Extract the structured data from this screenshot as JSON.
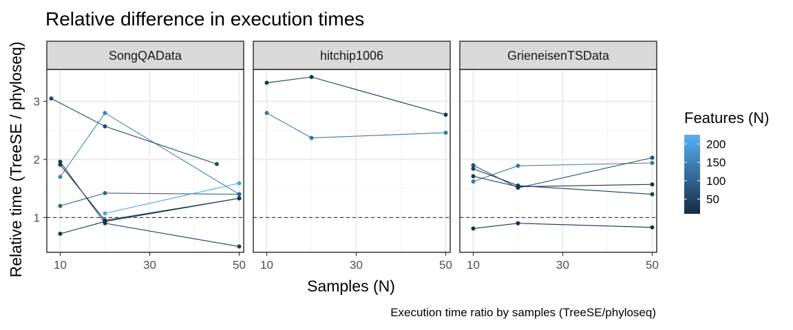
{
  "chart_data": {
    "type": "line",
    "title": "Relative difference in execution times",
    "xlabel": "Samples (N)",
    "ylabel": "Relative time (TreeSE / phyloseq)",
    "caption": "Execution time ratio by samples (TreeSE/phyloseq)",
    "x_ticks": [
      10,
      30,
      50
    ],
    "y_ticks": [
      1,
      2,
      3
    ],
    "xlim": [
      7,
      51
    ],
    "ylim": [
      0.4,
      3.55
    ],
    "reference_line": 1,
    "grid": true,
    "legend": {
      "title": "Features (N)",
      "position": "right",
      "ticks": [
        50,
        100,
        150,
        200
      ],
      "range": [
        10,
        225
      ],
      "color_low": "#132B43",
      "color_high": "#56B1F7"
    },
    "panels": [
      {
        "name": "SongQAData",
        "series": [
          {
            "features": 150,
            "x": [
              10,
              20,
              50
            ],
            "y": [
              1.7,
              2.8,
              1.4
            ]
          },
          {
            "features": 100,
            "x": [
              10,
              20,
              50
            ],
            "y": [
              1.2,
              1.42,
              1.4
            ]
          },
          {
            "features": 60,
            "x": [
              8,
              20,
              45
            ],
            "y": [
              3.05,
              2.57,
              1.92
            ]
          },
          {
            "features": 40,
            "x": [
              10,
              20,
              50
            ],
            "y": [
              1.96,
              0.9,
              0.5
            ]
          },
          {
            "features": 30,
            "x": [
              10,
              20,
              50
            ],
            "y": [
              1.91,
              0.95,
              1.33
            ]
          },
          {
            "features": 20,
            "x": [
              10,
              20,
              50
            ],
            "y": [
              0.72,
              0.93,
              1.33
            ]
          },
          {
            "features": 200,
            "x": [
              20,
              50
            ],
            "y": [
              1.07,
              1.59
            ]
          }
        ]
      },
      {
        "name": "hitchip1006",
        "series": [
          {
            "features": 130,
            "x": [
              10,
              20,
              50
            ],
            "y": [
              2.8,
              2.37,
              2.46
            ]
          },
          {
            "features": 30,
            "x": [
              10,
              20,
              50
            ],
            "y": [
              3.32,
              3.42,
              2.77
            ]
          }
        ]
      },
      {
        "name": "GrieneisenTSData",
        "series": [
          {
            "features": 130,
            "x": [
              10,
              20,
              50
            ],
            "y": [
              1.62,
              1.89,
              1.94
            ]
          },
          {
            "features": 70,
            "x": [
              10,
              20,
              50
            ],
            "y": [
              1.9,
              1.51,
              2.03
            ]
          },
          {
            "features": 40,
            "x": [
              10,
              20,
              50
            ],
            "y": [
              1.84,
              1.55,
              1.4
            ]
          },
          {
            "features": 25,
            "x": [
              10,
              20,
              50
            ],
            "y": [
              1.71,
              1.53,
              1.57
            ]
          },
          {
            "features": 20,
            "x": [
              10,
              20,
              50
            ],
            "y": [
              0.81,
              0.9,
              0.83
            ]
          }
        ]
      }
    ]
  }
}
